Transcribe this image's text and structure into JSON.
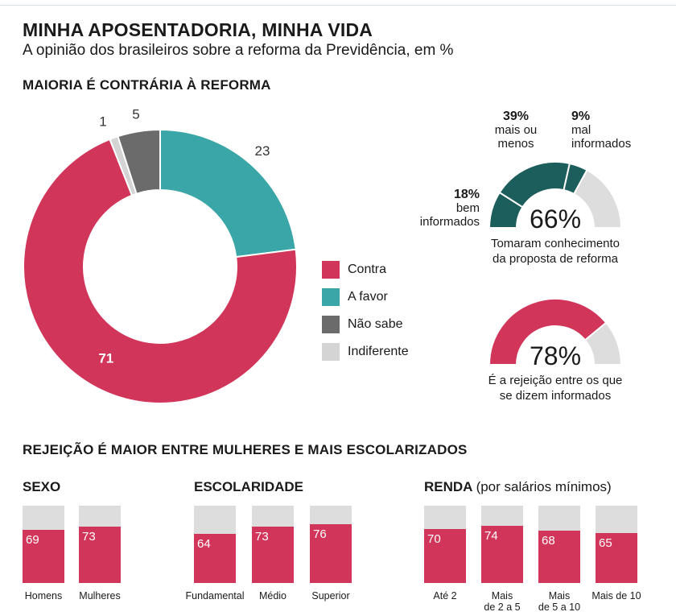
{
  "header": {
    "title": "MINHA APOSENTADORIA, MINHA VIDA",
    "subtitle": "A opinião dos brasileiros sobre a reforma da Previdência, em %"
  },
  "colors": {
    "contra": "#d1365a",
    "favor": "#3aa6a8",
    "nao_sabe": "#6b6b6b",
    "indiferente": "#d4d4d4",
    "dark_teal": "#1c5e5c",
    "light_gray": "#dddddd"
  },
  "chart_data": [
    {
      "type": "pie",
      "title": "MAIORIA É CONTRÁRIA À REFORMA",
      "slices": [
        {
          "key": "contra",
          "label": "Contra",
          "value": 71,
          "value_label": "71"
        },
        {
          "key": "favor",
          "label": "A favor",
          "value": 23,
          "value_label": "23"
        },
        {
          "key": "nao_sabe",
          "label": "Não sabe",
          "value": 5,
          "value_label": "5"
        },
        {
          "key": "indiferente",
          "label": "Indiferente",
          "value": 1,
          "value_label": "1"
        }
      ]
    },
    {
      "type": "pie",
      "title": "Tomaram conhecimento da proposta de reforma",
      "total": "66%",
      "caption_lines": [
        "Tomaram conhecimento",
        "da proposta de reforma"
      ],
      "slices": [
        {
          "label_lines": [
            "bem",
            "informados"
          ],
          "value": 18,
          "pct_label": "18%"
        },
        {
          "label_lines": [
            "mais ou",
            "menos"
          ],
          "value": 39,
          "pct_label": "39%"
        },
        {
          "label_lines": [
            "mal",
            "informados"
          ],
          "value": 9,
          "pct_label": "9%"
        }
      ]
    },
    {
      "type": "pie",
      "title": "É a rejeição entre os que se dizem informados",
      "value": 78,
      "total": "78%",
      "caption_lines": [
        "É a rejeição entre os que",
        "se dizem informados"
      ]
    },
    {
      "type": "bar",
      "title": "REJEIÇÃO É MAIOR ENTRE MULHERES E MAIS ESCOLARIZADOS",
      "ylim": [
        0,
        100
      ],
      "groups": [
        {
          "title": "SEXO",
          "note": "",
          "categories": [
            [
              "Homens"
            ],
            [
              "Mulheres"
            ]
          ],
          "values": [
            69,
            73
          ]
        },
        {
          "title": "ESCOLARIDADE",
          "note": "",
          "categories": [
            [
              "Fundamental"
            ],
            [
              "Médio"
            ],
            [
              "Superior"
            ]
          ],
          "values": [
            64,
            73,
            76
          ]
        },
        {
          "title": "RENDA",
          "note": "(por salários mínimos)",
          "categories": [
            [
              "Até 2"
            ],
            [
              "Mais",
              "de 2 a 5"
            ],
            [
              "Mais",
              "de 5 a 10"
            ],
            [
              "Mais de 10"
            ]
          ],
          "values": [
            70,
            74,
            68,
            65
          ]
        }
      ]
    }
  ]
}
